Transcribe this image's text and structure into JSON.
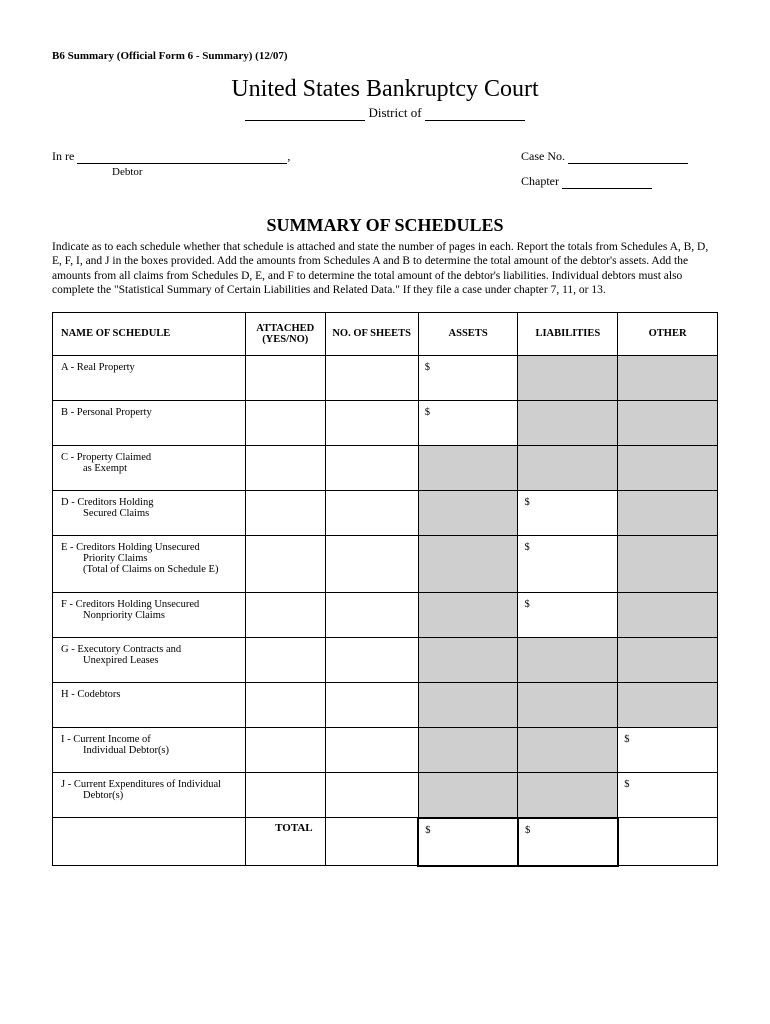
{
  "form_id": "B6 Summary (Official Form 6 - Summary) (12/07)",
  "court_title": "United States Bankruptcy Court",
  "district_label": "District of",
  "case_block": {
    "in_re_label": "In re",
    "debtor_label": "Debtor",
    "case_no_label": "Case No.",
    "chapter_label": "Chapter"
  },
  "summary_title": "SUMMARY OF SCHEDULES",
  "instructions": "Indicate as to each schedule whether that schedule is attached and state the number of pages in each. Report the totals from Schedules A, B, D, E, F, I, and J in the boxes provided. Add the amounts from Schedules A and B to determine the total amount of the debtor's assets. Add the amounts from all claims from Schedules D, E, and F to determine the total amount of the debtor's liabilities. Individual debtors must also complete the \"Statistical Summary of Certain Liabilities and Related Data.\" If they file a case under chapter 7, 11, or 13.",
  "headers": {
    "name": "NAME OF SCHEDULE",
    "attached": "ATTACHED (YES/NO)",
    "sheets": "NO. OF SHEETS",
    "assets": "ASSETS",
    "liabilities": "LIABILITIES",
    "other": "OTHER"
  },
  "rows": [
    {
      "name": "A - Real Property",
      "sub": "",
      "sub2": "",
      "assets": "$",
      "liabilities": "",
      "other": "",
      "shade_assets": false,
      "shade_liab": true,
      "shade_other": true,
      "tall": false
    },
    {
      "name": "B - Personal Property",
      "sub": "",
      "sub2": "",
      "assets": "$",
      "liabilities": "",
      "other": "",
      "shade_assets": false,
      "shade_liab": true,
      "shade_other": true,
      "tall": false
    },
    {
      "name": "C - Property Claimed",
      "sub": "as Exempt",
      "sub2": "",
      "assets": "",
      "liabilities": "",
      "other": "",
      "shade_assets": true,
      "shade_liab": true,
      "shade_other": true,
      "tall": false
    },
    {
      "name": "D - Creditors Holding",
      "sub": "Secured Claims",
      "sub2": "",
      "assets": "",
      "liabilities": "$",
      "other": "",
      "shade_assets": true,
      "shade_liab": false,
      "shade_other": true,
      "tall": false
    },
    {
      "name": "E - Creditors Holding Unsecured",
      "sub": "Priority Claims",
      "sub2": "(Total of Claims on Schedule E)",
      "assets": "",
      "liabilities": "$",
      "other": "",
      "shade_assets": true,
      "shade_liab": false,
      "shade_other": true,
      "tall": true
    },
    {
      "name": "F - Creditors Holding Unsecured",
      "sub": "Nonpriority Claims",
      "sub2": "",
      "assets": "",
      "liabilities": "$",
      "other": "",
      "shade_assets": true,
      "shade_liab": false,
      "shade_other": true,
      "tall": false
    },
    {
      "name": "G - Executory Contracts and",
      "sub": "Unexpired Leases",
      "sub2": "",
      "assets": "",
      "liabilities": "",
      "other": "",
      "shade_assets": true,
      "shade_liab": true,
      "shade_other": true,
      "tall": false
    },
    {
      "name": "H - Codebtors",
      "sub": "",
      "sub2": "",
      "assets": "",
      "liabilities": "",
      "other": "",
      "shade_assets": true,
      "shade_liab": true,
      "shade_other": true,
      "tall": false
    },
    {
      "name": "I - Current Income of",
      "sub": "Individual Debtor(s)",
      "sub2": "",
      "assets": "",
      "liabilities": "",
      "other": "$",
      "shade_assets": true,
      "shade_liab": true,
      "shade_other": false,
      "tall": false
    },
    {
      "name": "J - Current Expenditures of Individual",
      "sub": "Debtor(s)",
      "sub2": "",
      "assets": "",
      "liabilities": "",
      "other": "$",
      "shade_assets": true,
      "shade_liab": true,
      "shade_other": false,
      "tall": false
    }
  ],
  "total_label": "TOTAL",
  "total_assets": "$",
  "total_liabilities": "$",
  "colors": {
    "shaded": "#cfcfcf",
    "border": "#000000",
    "text": "#000000",
    "background": "#ffffff"
  }
}
